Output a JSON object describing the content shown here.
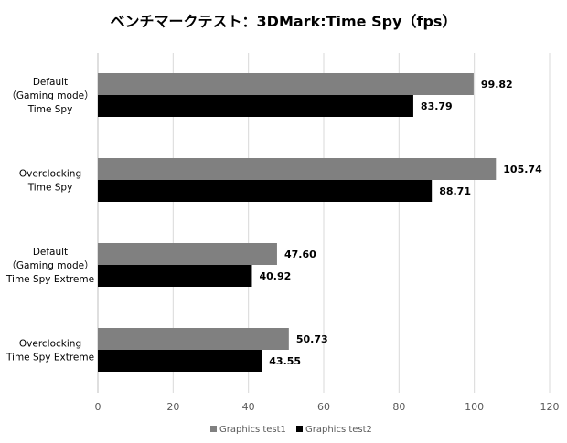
{
  "chart_data": {
    "type": "bar",
    "orientation": "horizontal",
    "title": "ベンチマークテスト：3DMark:Time Spy（fps）",
    "categories": [
      [
        "Default",
        "（Gaming mode）",
        "Time Spy"
      ],
      [
        "Overclocking",
        "Time Spy"
      ],
      [
        "Default",
        "（Gaming mode）",
        "Time Spy Extreme"
      ],
      [
        "Overclocking",
        "Time Spy Extreme"
      ]
    ],
    "series": [
      {
        "name": "Graphics test1",
        "color": "#808080",
        "values": [
          99.82,
          105.74,
          47.6,
          50.73
        ],
        "labels": [
          "99.82",
          "105.74",
          "47.60",
          "50.73"
        ]
      },
      {
        "name": "Graphics test2",
        "color": "#000000",
        "values": [
          83.79,
          88.71,
          40.92,
          43.55
        ],
        "labels": [
          "83.79",
          "88.71",
          "40.92",
          "43.55"
        ]
      }
    ],
    "xlim": [
      0,
      120
    ],
    "xticks": [
      0,
      20,
      40,
      60,
      80,
      100,
      120
    ],
    "xtick_labels": [
      "0",
      "20",
      "40",
      "60",
      "80",
      "100",
      "120"
    ],
    "grid": true,
    "gridline_color": "#d9d9d9",
    "legend_position": "bottom"
  }
}
